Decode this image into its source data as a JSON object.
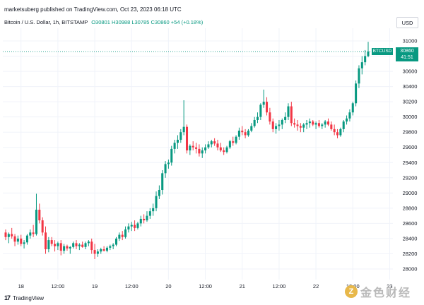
{
  "header": {
    "attribution": "marketsuberg published on TradingView.com, Oct 23, 2023 06:18 UTC",
    "symbol": "Bitcoin / U.S. Dollar, 1h, BITSTAMP",
    "ohlc": "O30801 H30988 L30785 C30860 +54 (+0.18%)"
  },
  "currency_button": "USD",
  "symbol_tag": "BTCUSD",
  "last_price": {
    "price": "30860",
    "countdown": "41:51"
  },
  "footer": {
    "logo": "17",
    "brand": "TradingView"
  },
  "watermark": {
    "icon_glyph": "Z",
    "text": "金色财经"
  },
  "colors": {
    "up": "#089981",
    "down": "#f23645",
    "grid": "#f0f3fa",
    "price_line": "#089981"
  },
  "chart_data": {
    "type": "candlestick",
    "title": "Bitcoin / U.S. Dollar, 1h, BITSTAMP",
    "ylim": [
      27950,
      31100
    ],
    "yticks": [
      28000,
      28200,
      28400,
      28600,
      28800,
      29000,
      29200,
      29400,
      29600,
      29800,
      30000,
      30200,
      30400,
      30600,
      30800,
      31000
    ],
    "x_ticks": [
      {
        "label": "18",
        "index": 5
      },
      {
        "label": "12:00",
        "index": 17
      },
      {
        "label": "19",
        "index": 29
      },
      {
        "label": "12:00",
        "index": 41
      },
      {
        "label": "20",
        "index": 53
      },
      {
        "label": "12:00",
        "index": 65
      },
      {
        "label": "21",
        "index": 77
      },
      {
        "label": "12:00",
        "index": 89
      },
      {
        "label": "22",
        "index": 101
      },
      {
        "label": "12:00",
        "index": 113
      },
      {
        "label": "23",
        "index": 125
      }
    ],
    "grid": true,
    "last_price": 30860,
    "candles": [
      [
        28480,
        28520,
        28380,
        28420
      ],
      [
        28420,
        28480,
        28340,
        28460
      ],
      [
        28460,
        28540,
        28400,
        28430
      ],
      [
        28430,
        28460,
        28300,
        28360
      ],
      [
        28360,
        28440,
        28320,
        28400
      ],
      [
        28400,
        28450,
        28300,
        28330
      ],
      [
        28330,
        28380,
        28270,
        28350
      ],
      [
        28350,
        28460,
        28320,
        28440
      ],
      [
        28440,
        28520,
        28400,
        28480
      ],
      [
        28480,
        28580,
        28420,
        28460
      ],
      [
        28460,
        28990,
        28440,
        28780
      ],
      [
        28780,
        28860,
        28600,
        28640
      ],
      [
        28640,
        28680,
        28440,
        28480
      ],
      [
        28480,
        28560,
        28200,
        28260
      ],
      [
        28260,
        28420,
        28220,
        28380
      ],
      [
        28380,
        28420,
        28300,
        28330
      ],
      [
        28330,
        28380,
        28230,
        28300
      ],
      [
        28300,
        28360,
        28250,
        28340
      ],
      [
        28340,
        28380,
        28180,
        28240
      ],
      [
        28240,
        28330,
        28200,
        28300
      ],
      [
        28300,
        28320,
        28240,
        28270
      ],
      [
        28270,
        28300,
        28200,
        28290
      ],
      [
        28290,
        28360,
        28270,
        28340
      ],
      [
        28340,
        28380,
        28260,
        28300
      ],
      [
        28300,
        28340,
        28250,
        28320
      ],
      [
        28320,
        28360,
        28280,
        28290
      ],
      [
        28290,
        28360,
        28260,
        28340
      ],
      [
        28340,
        28380,
        28300,
        28360
      ],
      [
        28360,
        28400,
        28200,
        28250
      ],
      [
        28250,
        28330,
        28130,
        28200
      ],
      [
        28200,
        28260,
        28160,
        28230
      ],
      [
        28230,
        28280,
        28200,
        28260
      ],
      [
        28260,
        28300,
        28230,
        28240
      ],
      [
        28240,
        28300,
        28220,
        28280
      ],
      [
        28280,
        28320,
        28250,
        28300
      ],
      [
        28300,
        28340,
        28260,
        28320
      ],
      [
        28320,
        28420,
        28300,
        28400
      ],
      [
        28400,
        28480,
        28370,
        28450
      ],
      [
        28450,
        28500,
        28380,
        28420
      ],
      [
        28420,
        28560,
        28400,
        28520
      ],
      [
        28520,
        28600,
        28480,
        28560
      ],
      [
        28560,
        28620,
        28500,
        28580
      ],
      [
        28580,
        28640,
        28500,
        28540
      ],
      [
        28540,
        28620,
        28520,
        28600
      ],
      [
        28600,
        28700,
        28560,
        28660
      ],
      [
        28660,
        28720,
        28600,
        28640
      ],
      [
        28640,
        28760,
        28620,
        28700
      ],
      [
        28700,
        28800,
        28660,
        28760
      ],
      [
        28760,
        28860,
        28700,
        28800
      ],
      [
        28800,
        29020,
        28760,
        28960
      ],
      [
        28960,
        29100,
        28920,
        29040
      ],
      [
        29040,
        29300,
        28980,
        29260
      ],
      [
        29260,
        29420,
        29200,
        29380
      ],
      [
        29380,
        29440,
        29320,
        29400
      ],
      [
        29400,
        29620,
        29360,
        29580
      ],
      [
        29580,
        29700,
        29520,
        29660
      ],
      [
        29660,
        29760,
        29580,
        29700
      ],
      [
        29700,
        29840,
        29660,
        29800
      ],
      [
        29800,
        30220,
        29760,
        29870
      ],
      [
        29870,
        29900,
        29520,
        29560
      ],
      [
        29560,
        29640,
        29500,
        29620
      ],
      [
        29620,
        29680,
        29560,
        29600
      ],
      [
        29600,
        29660,
        29520,
        29580
      ],
      [
        29580,
        29640,
        29480,
        29520
      ],
      [
        29520,
        29600,
        29460,
        29560
      ],
      [
        29560,
        29640,
        29520,
        29600
      ],
      [
        29600,
        29680,
        29580,
        29640
      ],
      [
        29640,
        29700,
        29600,
        29680
      ],
      [
        29680,
        29720,
        29620,
        29650
      ],
      [
        29650,
        29700,
        29560,
        29600
      ],
      [
        29600,
        29660,
        29540,
        29560
      ],
      [
        29560,
        29600,
        29500,
        29540
      ],
      [
        29540,
        29620,
        29520,
        29600
      ],
      [
        29600,
        29700,
        29580,
        29680
      ],
      [
        29680,
        29740,
        29620,
        29660
      ],
      [
        29660,
        29760,
        29640,
        29740
      ],
      [
        29740,
        29860,
        29700,
        29820
      ],
      [
        29820,
        29880,
        29760,
        29800
      ],
      [
        29800,
        29840,
        29720,
        29760
      ],
      [
        29760,
        29840,
        29740,
        29820
      ],
      [
        29820,
        29920,
        29800,
        29880
      ],
      [
        29880,
        30000,
        29860,
        29960
      ],
      [
        29960,
        30060,
        29920,
        30000
      ],
      [
        30000,
        30180,
        29960,
        30160
      ],
      [
        30160,
        30360,
        30120,
        30200
      ],
      [
        30200,
        30260,
        30020,
        30060
      ],
      [
        30060,
        30120,
        29900,
        29940
      ],
      [
        29940,
        29980,
        29800,
        29840
      ],
      [
        29840,
        29920,
        29780,
        29880
      ],
      [
        29880,
        29960,
        29820,
        29900
      ],
      [
        29900,
        29980,
        29840,
        29960
      ],
      [
        29960,
        30060,
        29920,
        30000
      ],
      [
        30000,
        30180,
        29960,
        30140
      ],
      [
        30140,
        30200,
        29880,
        29920
      ],
      [
        29920,
        29980,
        29860,
        29900
      ],
      [
        29900,
        29960,
        29820,
        29880
      ],
      [
        29880,
        29920,
        29800,
        29860
      ],
      [
        29860,
        29920,
        29800,
        29900
      ],
      [
        29900,
        29960,
        29840,
        29920
      ],
      [
        29920,
        29980,
        29860,
        29940
      ],
      [
        29940,
        29960,
        29880,
        29900
      ],
      [
        29900,
        29940,
        29840,
        29920
      ],
      [
        29920,
        29960,
        29860,
        29880
      ],
      [
        29880,
        29920,
        29840,
        29900
      ],
      [
        29900,
        29960,
        29860,
        29940
      ],
      [
        29940,
        29980,
        29880,
        29900
      ],
      [
        29900,
        29940,
        29820,
        29840
      ],
      [
        29840,
        29900,
        29760,
        29800
      ],
      [
        29800,
        29840,
        29720,
        29760
      ],
      [
        29760,
        29860,
        29740,
        29840
      ],
      [
        29840,
        29960,
        29800,
        29940
      ],
      [
        29940,
        30020,
        29900,
        29980
      ],
      [
        29980,
        30100,
        29940,
        30060
      ],
      [
        30060,
        30200,
        30020,
        30180
      ],
      [
        30180,
        30480,
        30140,
        30440
      ],
      [
        30440,
        30680,
        30380,
        30640
      ],
      [
        30640,
        30800,
        30560,
        30720
      ],
      [
        30720,
        30880,
        30680,
        30801
      ],
      [
        30801,
        30988,
        30785,
        30860
      ]
    ]
  }
}
